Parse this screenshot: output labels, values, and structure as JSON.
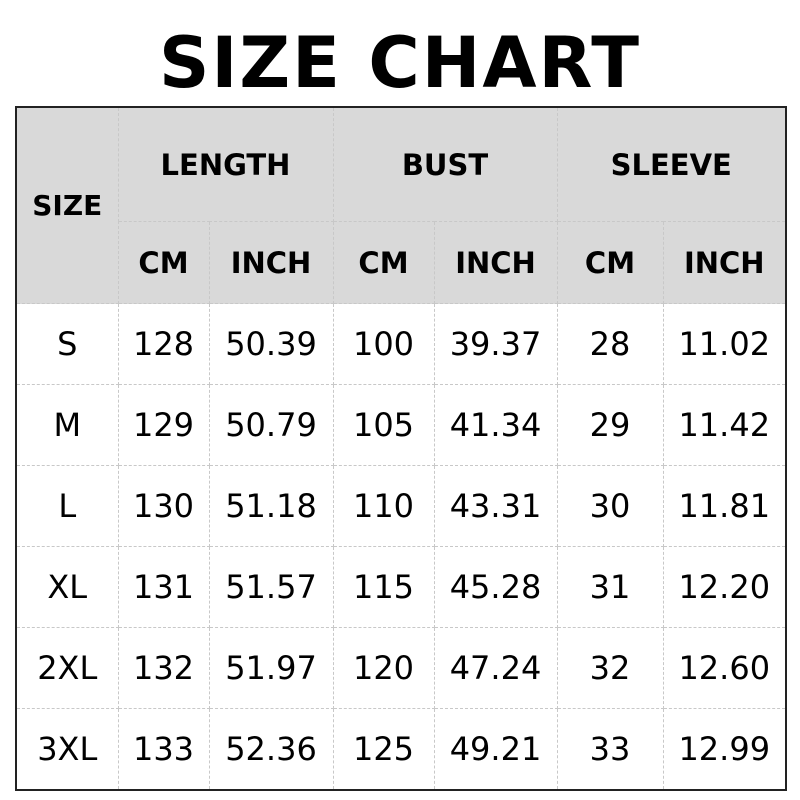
{
  "title": "SIZE CHART",
  "header": {
    "size": "SIZE",
    "groups": [
      "LENGTH",
      "BUST",
      "SLEEVE"
    ],
    "units": [
      "CM",
      "INCH",
      "CM",
      "INCH",
      "CM",
      "INCH"
    ]
  },
  "rows": [
    [
      "S",
      "128",
      "50.39",
      "100",
      "39.37",
      "28",
      "11.02"
    ],
    [
      "M",
      "129",
      "50.79",
      "105",
      "41.34",
      "29",
      "11.42"
    ],
    [
      "L",
      "130",
      "51.18",
      "110",
      "43.31",
      "30",
      "11.81"
    ],
    [
      "XL",
      "131",
      "51.57",
      "115",
      "45.28",
      "31",
      "12.20"
    ],
    [
      "2XL",
      "132",
      "51.97",
      "120",
      "47.24",
      "32",
      "12.60"
    ],
    [
      "3XL",
      "133",
      "52.36",
      "125",
      "49.21",
      "33",
      "12.99"
    ]
  ],
  "colors": {
    "header_bg": "#d9d9d9",
    "border": "#222222"
  }
}
